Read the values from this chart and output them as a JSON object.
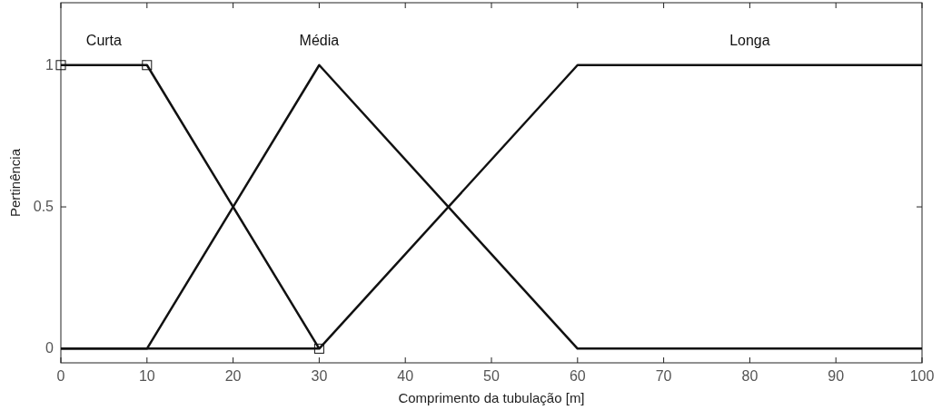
{
  "chart_data": {
    "type": "line",
    "xlabel": "Comprimento da tubulação [m]",
    "ylabel": "Pertinência",
    "xlim": [
      0,
      100
    ],
    "ylim": [
      -0.05,
      1.22
    ],
    "xticks": [
      0,
      10,
      20,
      30,
      40,
      50,
      60,
      70,
      80,
      90,
      100
    ],
    "yticks": [
      0,
      0.5,
      1
    ],
    "grid": false,
    "line_style": "solid",
    "series": [
      {
        "name": "Curta",
        "color": "#111111",
        "x": [
          0,
          10,
          30
        ],
        "values": [
          1,
          1,
          0
        ],
        "marker": "square"
      },
      {
        "name": "Média",
        "color": "#111111",
        "x": [
          0,
          10,
          30,
          60,
          100
        ],
        "values": [
          0,
          0,
          1,
          0,
          0
        ],
        "marker": "none"
      },
      {
        "name": "Longa",
        "color": "#111111",
        "x": [
          0,
          30,
          60,
          100
        ],
        "values": [
          0,
          0,
          1,
          1
        ],
        "marker": "none"
      }
    ]
  }
}
